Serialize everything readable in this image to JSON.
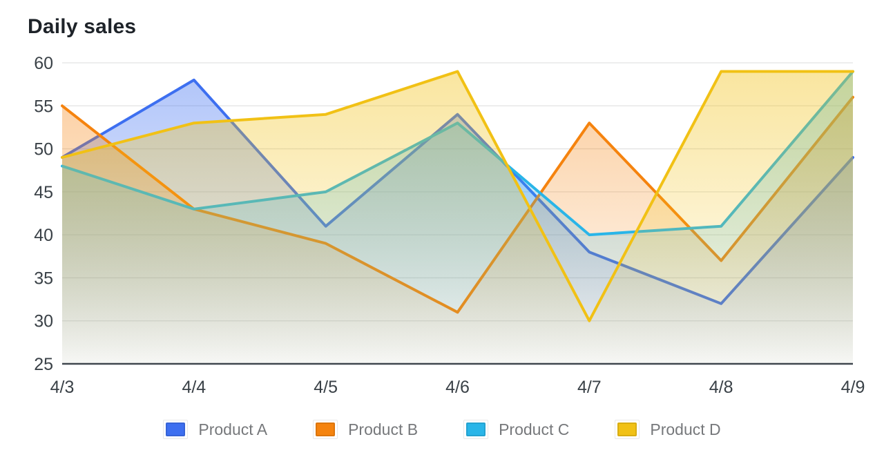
{
  "title": "Daily sales",
  "chart_data": {
    "type": "area",
    "title": "Daily sales",
    "categories": [
      "4/3",
      "4/4",
      "4/5",
      "4/6",
      "4/7",
      "4/8",
      "4/9"
    ],
    "series": [
      {
        "name": "Product A",
        "color": "#3D6FF0",
        "values": [
          49,
          58,
          41,
          54,
          38,
          32,
          49
        ]
      },
      {
        "name": "Product B",
        "color": "#F5830E",
        "values": [
          55,
          43,
          39,
          31,
          53,
          37,
          56
        ]
      },
      {
        "name": "Product C",
        "color": "#29B5E8",
        "values": [
          48,
          43,
          45,
          53,
          40,
          41,
          59
        ]
      },
      {
        "name": "Product D",
        "color": "#F1C115",
        "values": [
          49,
          53,
          54,
          59,
          30,
          59,
          59
        ]
      }
    ],
    "xlabel": "",
    "ylabel": "",
    "ylim": [
      25,
      60
    ],
    "yticks": [
      25,
      30,
      35,
      40,
      45,
      50,
      55,
      60
    ],
    "grid": true,
    "legend_position": "bottom",
    "area_fill_opacity_top": 0.42,
    "area_fill_opacity_bottom": 0.02
  },
  "style": {
    "grid_color": "#E2E3E3",
    "axis_color": "#3F474E",
    "tick_label_color": "#3A4147",
    "title_color": "#1E2329",
    "legend_text_color": "#76787B",
    "background": "#FFFFFF"
  }
}
